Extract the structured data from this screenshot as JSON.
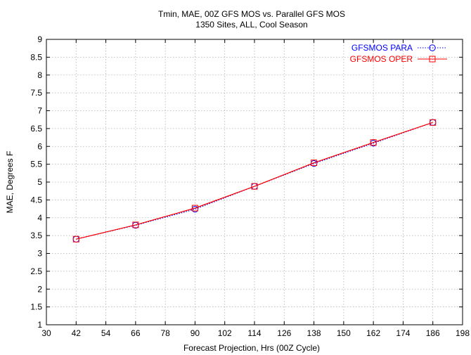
{
  "chart_data": {
    "type": "line",
    "title": "Tmin, MAE, 00Z GFS MOS vs. Parallel GFS MOS",
    "subtitle": "1350 Sites, ALL, Cool Season",
    "xlabel": "Forecast Projection, Hrs (00Z Cycle)",
    "ylabel": "MAE, Degrees F",
    "xlim": [
      30,
      198
    ],
    "ylim": [
      1,
      9
    ],
    "xticks": [
      30,
      42,
      54,
      66,
      78,
      90,
      102,
      114,
      126,
      138,
      150,
      162,
      174,
      186,
      198
    ],
    "yticks": [
      1,
      1.5,
      2,
      2.5,
      3,
      3.5,
      4,
      4.5,
      5,
      5.5,
      6,
      6.5,
      7,
      7.5,
      8,
      8.5,
      9
    ],
    "xtick_labels": [
      "30",
      "42",
      "54",
      "66",
      "78",
      "90",
      "102",
      "114",
      "126",
      "138",
      "150",
      "162",
      "174",
      "186",
      "198"
    ],
    "ytick_labels": [
      "1",
      "1.5",
      "2",
      "2.5",
      "3",
      "3.5",
      "4",
      "4.5",
      "5",
      "5.5",
      "6",
      "6.5",
      "7",
      "7.5",
      "8",
      "8.5",
      "9"
    ],
    "grid": true,
    "legend_position": "top-right",
    "x": [
      42,
      66,
      90,
      114,
      138,
      162,
      186
    ],
    "series": [
      {
        "name": "GFSMOS PARA",
        "color": "#0000ff",
        "line_style": "dotted",
        "marker": "circle",
        "values": [
          3.4,
          3.79,
          4.24,
          4.88,
          5.52,
          6.09,
          6.67
        ]
      },
      {
        "name": "GFSMOS OPER",
        "color": "#ff0000",
        "line_style": "solid",
        "marker": "square",
        "values": [
          3.4,
          3.8,
          4.27,
          4.88,
          5.54,
          6.11,
          6.67
        ]
      }
    ]
  }
}
